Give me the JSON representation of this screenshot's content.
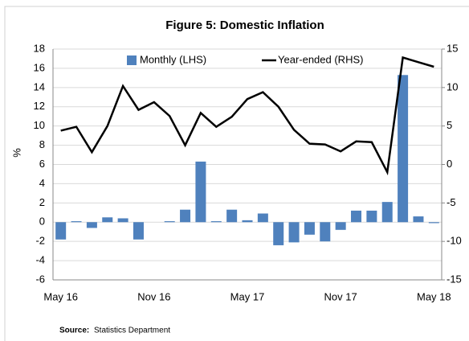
{
  "chart_data": {
    "type": "bar_line",
    "title": "Figure 5: Domestic Inflation",
    "y_label": "%",
    "categories": [
      "May 16",
      null,
      null,
      null,
      null,
      null,
      "Nov 16",
      null,
      null,
      null,
      null,
      null,
      "May 17",
      null,
      null,
      null,
      null,
      null,
      "Nov 17",
      null,
      null,
      null,
      null,
      null,
      "May 18"
    ],
    "series": [
      {
        "name": "Monthly (LHS)",
        "type": "bar",
        "color": "#4f81bd",
        "values": [
          -1.8,
          0.1,
          -0.6,
          0.5,
          0.4,
          -1.8,
          0,
          0.1,
          1.3,
          6.3,
          0.1,
          1.3,
          0.2,
          0.9,
          -2.4,
          -2.1,
          -1.3,
          -2.0,
          -0.8,
          1.2,
          1.2,
          2.1,
          15.3,
          0.6,
          -0.1
        ]
      },
      {
        "name": "Year-ended (RHS)",
        "type": "line",
        "axis": "y2",
        "color": "#000000",
        "values": [
          4.4,
          4.9,
          1.6,
          5.0,
          10.2,
          7.1,
          8.1,
          6.3,
          2.5,
          6.7,
          4.9,
          6.2,
          8.5,
          9.4,
          7.5,
          4.5,
          2.7,
          2.6,
          1.7,
          3.0,
          2.9,
          -1.0,
          13.9,
          13.3,
          12.7
        ]
      }
    ],
    "ylim": [
      -6,
      18
    ],
    "yticks": [
      -6,
      -4,
      -2,
      0,
      2,
      4,
      6,
      8,
      10,
      12,
      14,
      16,
      18
    ],
    "y2lim": [
      -15,
      15
    ],
    "y2ticks": [
      -15,
      -10,
      -5,
      0,
      5,
      10,
      15
    ],
    "grid": true,
    "legend": "top",
    "source_label": "Source:",
    "source_text": "Statistics Department"
  }
}
